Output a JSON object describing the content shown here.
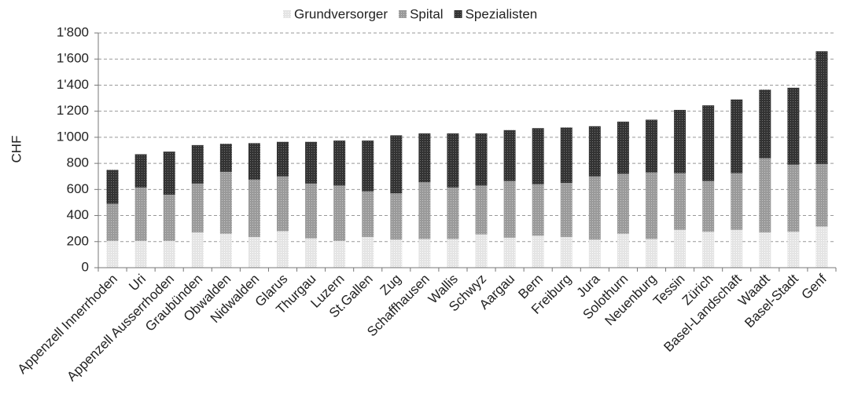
{
  "chart_data": {
    "type": "stacked_bar",
    "y_label": "CHF",
    "categories": [
      "Appenzell Innerrhoden",
      "Uri",
      "Appenzell Ausserrhoden",
      "Graubünden",
      "Obwalden",
      "Nidwalden",
      "Glarus",
      "Thurgau",
      "Luzern",
      "St.Gallen",
      "Zug",
      "Schaffhausen",
      "Wallis",
      "Schwyz",
      "Aargau",
      "Bern",
      "Freiburg",
      "Jura",
      "Solothurn",
      "Neuenburg",
      "Tessin",
      "Zürich",
      "Basel-Landschaft",
      "Waadt",
      "Basel-Stadt",
      "Genf"
    ],
    "series": [
      {
        "name": "Grundversorger",
        "color": "#e4e4e4",
        "values": [
          205,
          205,
          205,
          270,
          260,
          235,
          280,
          225,
          205,
          235,
          215,
          220,
          220,
          255,
          230,
          245,
          235,
          215,
          260,
          220,
          290,
          275,
          290,
          270,
          275,
          315
        ]
      },
      {
        "name": "Spital",
        "color": "#9a9a9a",
        "values": [
          285,
          410,
          355,
          375,
          475,
          440,
          420,
          420,
          425,
          350,
          355,
          435,
          395,
          375,
          435,
          395,
          415,
          485,
          460,
          510,
          435,
          390,
          435,
          570,
          515,
          480
        ]
      },
      {
        "name": "Spezialisten",
        "color": "#333333",
        "values": [
          260,
          255,
          330,
          295,
          215,
          280,
          265,
          320,
          345,
          390,
          445,
          375,
          415,
          400,
          390,
          430,
          425,
          385,
          400,
          405,
          485,
          580,
          565,
          525,
          590,
          865
        ]
      }
    ],
    "ylim": [
      0,
      1800
    ],
    "yticks": [
      0,
      200,
      400,
      600,
      800,
      {
        "value": 1000,
        "label": "1'000"
      },
      {
        "value": 1200,
        "label": "1'200"
      },
      {
        "value": 1400,
        "label": "1'400"
      },
      {
        "value": 1600,
        "label": "1'600"
      },
      {
        "value": 1800,
        "label": "1'800"
      }
    ],
    "grid": true,
    "legend": "top"
  }
}
